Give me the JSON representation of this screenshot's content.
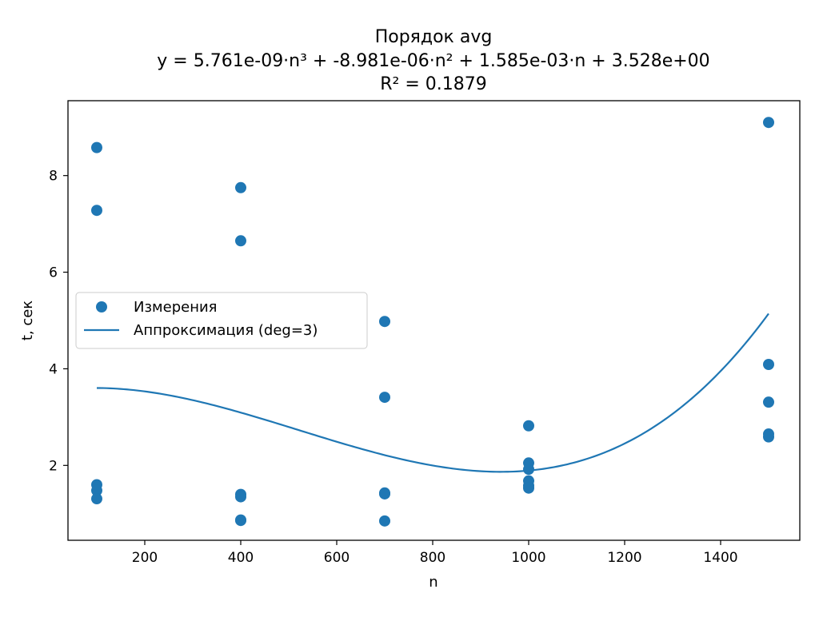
{
  "chart_data": {
    "type": "scatter",
    "title_lines": [
      "Порядок avg",
      "y = 5.761e-09·n³ + -8.981e-06·n² + 1.585e-03·n + 3.528e+00",
      "R² = 0.1879"
    ],
    "xlabel": "n",
    "ylabel": "t, сек",
    "xlim": [
      40,
      1565
    ],
    "ylim": [
      0.45,
      9.55
    ],
    "xticks": [
      200,
      400,
      600,
      800,
      1000,
      1200,
      1400
    ],
    "yticks": [
      2,
      4,
      6,
      8
    ],
    "grid": false,
    "legend_position": "center-left",
    "series": [
      {
        "name": "Измерения",
        "kind": "scatter",
        "color": "#1f77b4",
        "x": [
          100,
          100,
          100,
          100,
          100,
          400,
          400,
          400,
          400,
          400,
          400,
          700,
          700,
          700,
          700,
          700,
          1000,
          1000,
          1000,
          1000,
          1000,
          1000,
          1500,
          1500,
          1500,
          1500,
          1500
        ],
        "y": [
          8.58,
          7.28,
          1.6,
          1.48,
          1.31,
          7.75,
          6.65,
          1.4,
          1.35,
          0.87,
          0.86,
          4.98,
          3.41,
          1.43,
          1.41,
          0.85,
          2.82,
          2.05,
          1.92,
          1.68,
          1.58,
          1.53,
          9.1,
          4.09,
          3.31,
          2.65,
          2.59
        ]
      },
      {
        "name": "Аппроксимация (deg=3)",
        "kind": "line",
        "color": "#1f77b4",
        "coefficients": [
          5.761e-09,
          -8.981e-06,
          0.001585,
          3.528
        ],
        "x_range": [
          100,
          1500
        ]
      }
    ]
  }
}
